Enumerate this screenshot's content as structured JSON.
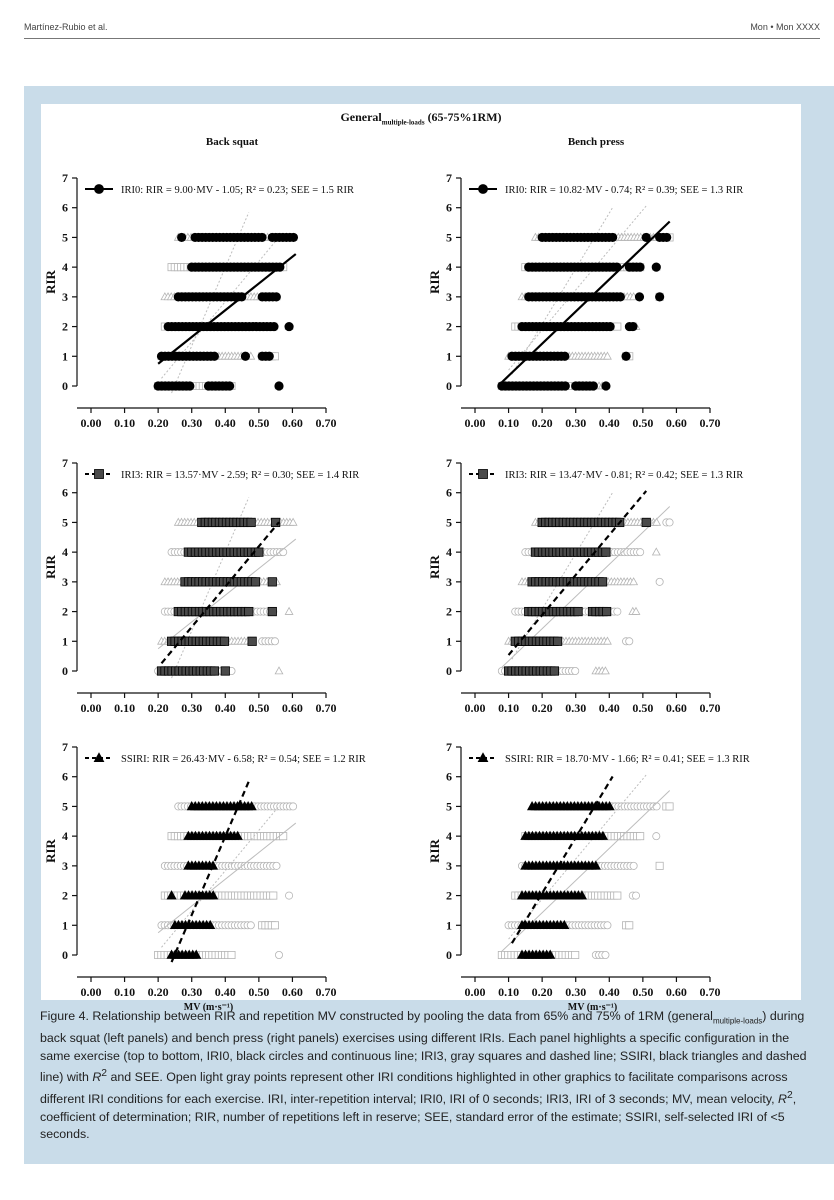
{
  "header": {
    "author": "Martínez-Rubio et al.",
    "journal": "Mon • Mon XXXX"
  },
  "figure": {
    "title_main": "General",
    "title_sub": "multiple-loads",
    "title_rest": " (65-75%1RM)",
    "columns": [
      "Back squat",
      "Bench press"
    ],
    "ylabel": "RIR",
    "xlabel": "MV (m·s⁻¹)",
    "x_ticks": [
      "0.00",
      "0.10",
      "0.20",
      "0.30",
      "0.40",
      "0.50",
      "0.60",
      "0.70"
    ],
    "y_ticks": [
      "0",
      "1",
      "2",
      "3",
      "4",
      "5",
      "6",
      "7"
    ]
  },
  "chart_data": [
    {
      "type": "scatter",
      "exercise": "Back squat",
      "highlight": "IRI0",
      "marker": "circle",
      "line_style": "solid",
      "legend": "IRI0: RIR = 9.00·MV - 1.05; R² = 0.23; SEE = 1.5 RIR",
      "slope": 9.0,
      "intercept": -1.05,
      "line_x": [
        0.2,
        0.61
      ],
      "xlim": [
        0,
        0.7
      ],
      "ylim": [
        0,
        7
      ],
      "points": {
        "0": [
          [
            0.2,
            0.3
          ],
          [
            0.35,
            0.42
          ],
          [
            0.56,
            0.56
          ]
        ],
        "1": [
          [
            0.21,
            0.37
          ],
          [
            0.46,
            0.46
          ],
          [
            0.51,
            0.54
          ]
        ],
        "2": [
          [
            0.23,
            0.55
          ],
          [
            0.59,
            0.59
          ]
        ],
        "3": [
          [
            0.26,
            0.45
          ],
          [
            0.51,
            0.56
          ]
        ],
        "4": [
          [
            0.3,
            0.57
          ]
        ],
        "5": [
          [
            0.27,
            0.27
          ],
          [
            0.31,
            0.51
          ],
          [
            0.54,
            0.61
          ]
        ]
      }
    },
    {
      "type": "scatter",
      "exercise": "Bench press",
      "highlight": "IRI0",
      "marker": "circle",
      "line_style": "solid",
      "legend": "IRI0: RIR = 10.82·MV - 0.74; R² = 0.39; SEE = 1.3 RIR",
      "slope": 10.82,
      "intercept": -0.74,
      "line_x": [
        0.08,
        0.58
      ],
      "xlim": [
        0,
        0.7
      ],
      "ylim": [
        0,
        7
      ],
      "points": {
        "0": [
          [
            0.08,
            0.27
          ],
          [
            0.3,
            0.36
          ],
          [
            0.39,
            0.39
          ]
        ],
        "1": [
          [
            0.11,
            0.27
          ],
          [
            0.45,
            0.46
          ]
        ],
        "2": [
          [
            0.14,
            0.41
          ],
          [
            0.46,
            0.48
          ]
        ],
        "3": [
          [
            0.16,
            0.44
          ],
          [
            0.49,
            0.49
          ],
          [
            0.55,
            0.55
          ]
        ],
        "4": [
          [
            0.16,
            0.43
          ],
          [
            0.46,
            0.5
          ],
          [
            0.54,
            0.54
          ]
        ],
        "5": [
          [
            0.2,
            0.41
          ],
          [
            0.51,
            0.51
          ],
          [
            0.55,
            0.58
          ]
        ]
      }
    },
    {
      "type": "scatter",
      "exercise": "Back squat",
      "highlight": "IRI3",
      "marker": "square",
      "line_style": "dashed",
      "legend": "IRI3: RIR = 13.57·MV - 2.59; R² = 0.30; SEE = 1.4 RIR",
      "slope": 13.57,
      "intercept": -2.59,
      "line_x": [
        0.21,
        0.56
      ],
      "xlim": [
        0,
        0.7
      ],
      "ylim": [
        0,
        7
      ],
      "points": {
        "0": [
          [
            0.21,
            0.37
          ],
          [
            0.4,
            0.4
          ]
        ],
        "1": [
          [
            0.24,
            0.4
          ],
          [
            0.48,
            0.48
          ]
        ],
        "2": [
          [
            0.26,
            0.48
          ],
          [
            0.54,
            0.54
          ]
        ],
        "3": [
          [
            0.28,
            0.5
          ],
          [
            0.54,
            0.54
          ]
        ],
        "4": [
          [
            0.29,
            0.51
          ]
        ],
        "5": [
          [
            0.33,
            0.48
          ],
          [
            0.55,
            0.56
          ]
        ]
      }
    },
    {
      "type": "scatter",
      "exercise": "Bench press",
      "highlight": "IRI3",
      "marker": "square",
      "line_style": "dashed",
      "legend": "IRI3: RIR = 13.47·MV - 0.81; R² = 0.42; SEE = 1.3 RIR",
      "slope": 13.47,
      "intercept": -0.81,
      "line_x": [
        0.1,
        0.51
      ],
      "xlim": [
        0,
        0.7
      ],
      "ylim": [
        0,
        7
      ],
      "points": {
        "0": [
          [
            0.1,
            0.24
          ]
        ],
        "1": [
          [
            0.12,
            0.25
          ]
        ],
        "2": [
          [
            0.16,
            0.31
          ],
          [
            0.35,
            0.4
          ]
        ],
        "3": [
          [
            0.17,
            0.38
          ]
        ],
        "4": [
          [
            0.18,
            0.39
          ]
        ],
        "5": [
          [
            0.2,
            0.44
          ],
          [
            0.51,
            0.51
          ]
        ]
      }
    },
    {
      "type": "scatter",
      "exercise": "Back squat",
      "highlight": "SSIRI",
      "marker": "triangle",
      "line_style": "dashed",
      "legend": "SSIRI: RIR = 26.43·MV - 6.58; R² = 0.54; SEE = 1.2 RIR",
      "slope": 26.43,
      "intercept": -6.58,
      "line_x": [
        0.24,
        0.47
      ],
      "xlim": [
        0,
        0.7
      ],
      "ylim": [
        0,
        7
      ],
      "points": {
        "0": [
          [
            0.24,
            0.32
          ]
        ],
        "1": [
          [
            0.25,
            0.36
          ]
        ],
        "2": [
          [
            0.24,
            0.24
          ],
          [
            0.28,
            0.37
          ]
        ],
        "3": [
          [
            0.29,
            0.37
          ]
        ],
        "4": [
          [
            0.29,
            0.44
          ]
        ],
        "5": [
          [
            0.3,
            0.48
          ]
        ]
      }
    },
    {
      "type": "scatter",
      "exercise": "Bench press",
      "highlight": "SSIRI",
      "marker": "triangle",
      "line_style": "dashed",
      "legend": "SSIRI: RIR = 18.70·MV - 1.66; R² = 0.41; SEE = 1.3 RIR",
      "slope": 18.7,
      "intercept": -1.66,
      "line_x": [
        0.11,
        0.41
      ],
      "xlim": [
        0,
        0.7
      ],
      "ylim": [
        0,
        7
      ],
      "points": {
        "0": [
          [
            0.14,
            0.23
          ]
        ],
        "1": [
          [
            0.14,
            0.27
          ]
        ],
        "2": [
          [
            0.14,
            0.32
          ]
        ],
        "3": [
          [
            0.15,
            0.36
          ]
        ],
        "4": [
          [
            0.15,
            0.39
          ]
        ],
        "5": [
          [
            0.17,
            0.41
          ]
        ]
      }
    }
  ],
  "caption": {
    "figure_label": "Figure 4.",
    "p1": " Relationship between RIR and repetition MV constructed by pooling the data from 65% and 75% of 1RM (general",
    "p1_sub": "multiple-loads",
    "p2": ") during back squat (left panels) and bench press (right panels) exercises using different IRIs. Each panel highlights a specific configuration in the same exercise (top to bottom, IRI0, black circles and continuous line; IRI3, gray squares and dashed line; SSIRI, black triangles and dashed line) with ",
    "r2_symbol": "R",
    "r2_sup": "2",
    "p3": " and SEE. Open light gray points represent other IRI conditions highlighted in other graphics to facilitate comparisons across different IRI conditions for each exercise. IRI, inter-repetition interval; IRI0, IRI of 0 seconds; IRI3, IRI of 3 seconds; MV, mean velocity, ",
    "p4": ", coefficient of determination; RIR, number of repetitions left in reserve; SEE, standard error of the estimate; SSIRI, self-selected IRI of <5 seconds."
  }
}
